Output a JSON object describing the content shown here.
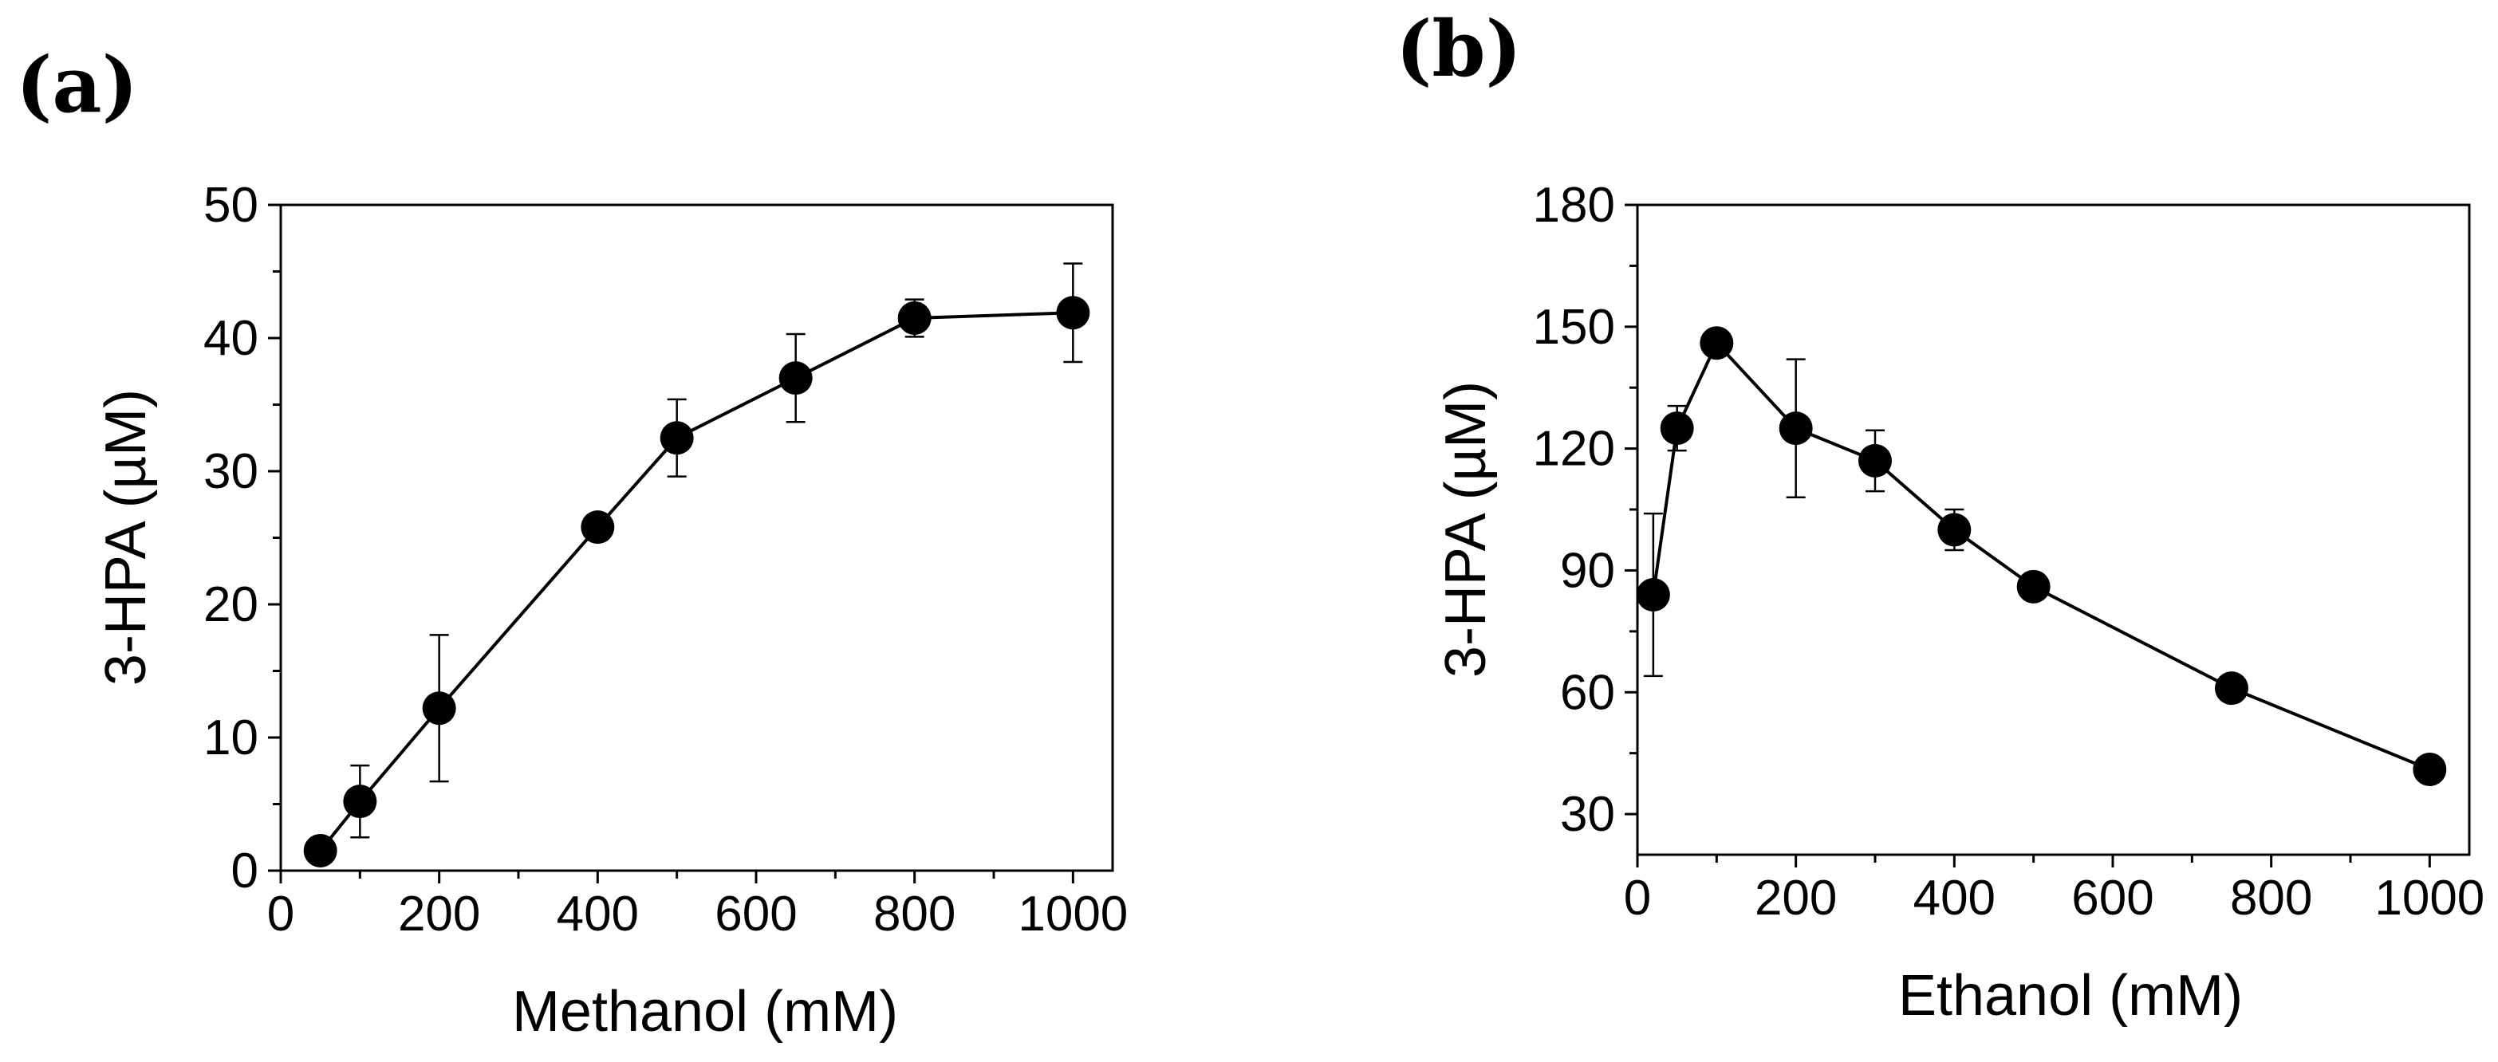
{
  "chart_data": [
    {
      "type": "line",
      "panel_label": "(a)",
      "xlabel": "Methanol (mM)",
      "ylabel": "3-HPA (µM)",
      "xlim": [
        0,
        1050
      ],
      "ylim": [
        0,
        50
      ],
      "xticks": [
        0,
        200,
        400,
        600,
        800,
        1000
      ],
      "yticks": [
        0,
        10,
        20,
        30,
        40,
        50
      ],
      "grid": false,
      "series": [
        {
          "name": "3-HPA",
          "x": [
            50,
            100,
            200,
            400,
            500,
            650,
            800,
            1000
          ],
          "y": [
            1.5,
            5.2,
            12.2,
            25.8,
            32.5,
            37.0,
            41.5,
            41.9
          ],
          "err": [
            0.5,
            2.7,
            5.5,
            0.6,
            2.9,
            3.3,
            1.4,
            3.7
          ]
        }
      ]
    },
    {
      "type": "line",
      "panel_label": "(b)",
      "xlabel": "Ethanol (mM)",
      "ylabel": "3-HPA (µM)",
      "xlim": [
        0,
        1050
      ],
      "ylim": [
        20,
        180
      ],
      "xticks": [
        0,
        200,
        400,
        600,
        800,
        1000
      ],
      "yticks": [
        30,
        60,
        90,
        120,
        150,
        180
      ],
      "grid": false,
      "series": [
        {
          "name": "3-HPA",
          "x": [
            20,
            50,
            100,
            200,
            300,
            400,
            500,
            750,
            1000
          ],
          "y": [
            84,
            125,
            146,
            125,
            117,
            100,
            86,
            61,
            41
          ],
          "err": [
            20,
            5.5,
            2,
            17,
            7.5,
            5,
            3,
            2,
            2
          ]
        }
      ]
    }
  ]
}
